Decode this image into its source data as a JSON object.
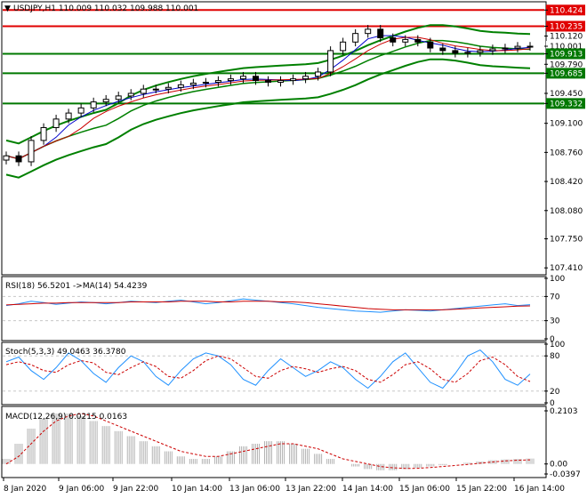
{
  "header": {
    "symbol_line": "USDJPY,H1  110.009 110.032 109.988 110.001"
  },
  "colors": {
    "background": "#ffffff",
    "frame": "#000000",
    "candle": "#000000",
    "grid": "#c8c8c8",
    "red_level": "#e00000",
    "green_level": "#007800",
    "bollinger": "#008000",
    "ma_fast": "#0000cc",
    "ma_red": "#cc0000",
    "osc_main": "#1e90ff",
    "osc_signal": "#cc0000",
    "macd_hist": "#b4b4b4"
  },
  "price_axis": {
    "ticks": [
      "110.424",
      "110.235",
      "110.120",
      "110.001",
      "109.913",
      "109.790",
      "109.685",
      "109.450",
      "109.332",
      "109.100",
      "108.760",
      "108.420",
      "108.080",
      "107.750",
      "107.410"
    ],
    "highlight": {
      "110.424": "red",
      "110.235": "red",
      "110.001": "white",
      "109.913": "green",
      "109.685": "green",
      "109.332": "green"
    }
  },
  "time_axis": {
    "labels": [
      "8 Jan 2020",
      "9 Jan 06:00",
      "9 Jan 22:00",
      "10 Jan 14:00",
      "13 Jan 06:00",
      "13 Jan 22:00",
      "14 Jan 14:00",
      "15 Jan 06:00",
      "15 Jan 22:00",
      "16 Jan 14:00"
    ]
  },
  "chart_data": [
    {
      "type": "candlestick",
      "title": "USDJPY,H1",
      "ohlc_last": {
        "open": 110.009,
        "high": 110.032,
        "low": 109.988,
        "close": 110.001
      },
      "ylim": [
        107.35,
        110.5
      ],
      "horizontal_levels": [
        {
          "value": 110.424,
          "color": "red"
        },
        {
          "value": 110.235,
          "color": "red"
        },
        {
          "value": 109.913,
          "color": "green"
        },
        {
          "value": 109.685,
          "color": "green"
        },
        {
          "value": 109.332,
          "color": "green"
        }
      ],
      "close_series": [
        108.72,
        108.65,
        108.9,
        109.05,
        109.15,
        109.22,
        109.28,
        109.35,
        109.38,
        109.42,
        109.45,
        109.5,
        109.5,
        109.52,
        109.55,
        109.57,
        109.58,
        109.6,
        109.62,
        109.65,
        109.6,
        109.58,
        109.6,
        109.62,
        109.65,
        109.7,
        109.95,
        110.05,
        110.15,
        110.2,
        110.1,
        110.05,
        110.08,
        110.05,
        109.98,
        109.95,
        109.92,
        109.93,
        109.95,
        109.97,
        109.98,
        110.0,
        110.001
      ],
      "grid": false,
      "legend": "none"
    },
    {
      "type": "line",
      "title": "RSI(18) 56.5201  ->MA(14) 54.4239",
      "ylim": [
        0,
        100
      ],
      "ticks": [
        "100",
        "70",
        "30",
        "0"
      ],
      "series": [
        {
          "values": [
            55,
            58,
            62,
            60,
            57,
            59,
            61,
            60,
            58,
            60,
            62,
            61,
            60,
            62,
            64,
            61,
            58,
            60,
            63,
            66,
            64,
            62,
            60,
            58,
            55,
            52,
            50,
            48,
            46,
            45,
            44,
            46,
            48,
            47,
            46,
            48,
            50,
            52,
            54,
            56,
            58,
            55,
            56.5201
          ]
        },
        {
          "values": [
            56,
            57,
            58,
            59,
            59,
            60,
            60,
            60,
            60,
            60,
            61,
            61,
            61,
            61,
            62,
            62,
            62,
            61,
            61,
            62,
            62,
            62,
            61,
            61,
            60,
            58,
            56,
            54,
            52,
            50,
            49,
            48,
            48,
            48,
            48,
            48,
            49,
            50,
            51,
            52,
            53,
            54,
            54.4239
          ]
        }
      ]
    },
    {
      "type": "line",
      "title": "Stoch(5,3,3) 49.0463 36.3780",
      "ylim": [
        0,
        100
      ],
      "ticks": [
        "100",
        "80",
        "20",
        "0"
      ],
      "series": [
        {
          "values": [
            70,
            78,
            55,
            40,
            60,
            85,
            72,
            50,
            35,
            60,
            80,
            70,
            45,
            30,
            55,
            75,
            85,
            80,
            65,
            40,
            30,
            55,
            75,
            60,
            45,
            55,
            70,
            60,
            40,
            25,
            45,
            70,
            85,
            60,
            35,
            25,
            50,
            80,
            90,
            70,
            40,
            30,
            49.0463
          ]
        },
        {
          "values": [
            65,
            70,
            65,
            55,
            52,
            65,
            72,
            68,
            52,
            48,
            60,
            70,
            62,
            45,
            42,
            55,
            72,
            80,
            75,
            60,
            45,
            42,
            55,
            62,
            58,
            52,
            58,
            62,
            55,
            40,
            35,
            48,
            65,
            70,
            58,
            40,
            35,
            50,
            72,
            78,
            65,
            45,
            36.378
          ]
        }
      ]
    },
    {
      "type": "bar",
      "title": "MACD(12,26,9) 0.0215 0.0163",
      "ylim": [
        -0.0397,
        0.2103
      ],
      "ticks": [
        "0.2103",
        "0.00",
        "-0.0397"
      ],
      "series": [
        {
          "name": "MACD",
          "values": [
            0.02,
            0.08,
            0.14,
            0.18,
            0.2,
            0.2,
            0.19,
            0.17,
            0.15,
            0.13,
            0.11,
            0.09,
            0.07,
            0.05,
            0.03,
            0.02,
            0.02,
            0.03,
            0.05,
            0.07,
            0.08,
            0.09,
            0.09,
            0.08,
            0.06,
            0.04,
            0.02,
            0.0,
            -0.01,
            -0.02,
            -0.025,
            -0.025,
            -0.02,
            -0.015,
            -0.01,
            -0.005,
            0.0,
            0.005,
            0.01,
            0.015,
            0.018,
            0.02,
            0.0215
          ]
        },
        {
          "name": "Signal",
          "values": [
            0.0,
            0.03,
            0.08,
            0.13,
            0.17,
            0.19,
            0.2,
            0.19,
            0.17,
            0.15,
            0.13,
            0.11,
            0.09,
            0.07,
            0.05,
            0.04,
            0.03,
            0.03,
            0.04,
            0.05,
            0.06,
            0.07,
            0.08,
            0.08,
            0.07,
            0.06,
            0.04,
            0.02,
            0.01,
            0.0,
            -0.01,
            -0.015,
            -0.018,
            -0.017,
            -0.014,
            -0.01,
            -0.006,
            -0.002,
            0.003,
            0.008,
            0.012,
            0.015,
            0.0163
          ]
        }
      ]
    }
  ]
}
